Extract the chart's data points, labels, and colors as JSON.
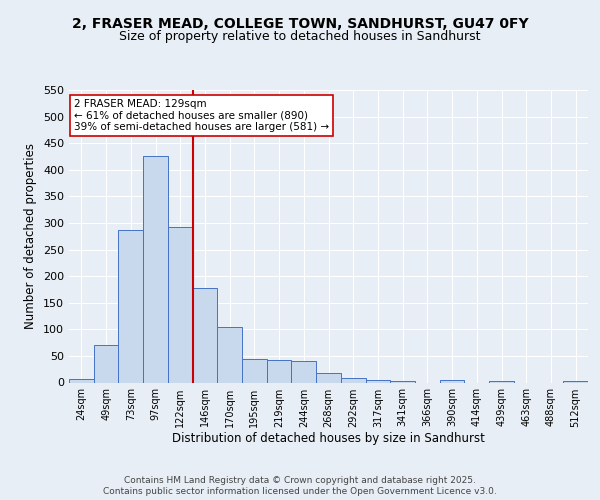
{
  "title_line1": "2, FRASER MEAD, COLLEGE TOWN, SANDHURST, GU47 0FY",
  "title_line2": "Size of property relative to detached houses in Sandhurst",
  "xlabel": "Distribution of detached houses by size in Sandhurst",
  "ylabel": "Number of detached properties",
  "bar_labels": [
    "24sqm",
    "49sqm",
    "73sqm",
    "97sqm",
    "122sqm",
    "146sqm",
    "170sqm",
    "195sqm",
    "219sqm",
    "244sqm",
    "268sqm",
    "292sqm",
    "317sqm",
    "341sqm",
    "366sqm",
    "390sqm",
    "414sqm",
    "439sqm",
    "463sqm",
    "488sqm",
    "512sqm"
  ],
  "bar_values": [
    7,
    70,
    287,
    425,
    293,
    177,
    104,
    45,
    42,
    40,
    17,
    9,
    5,
    2,
    0,
    4,
    0,
    2,
    0,
    0,
    3
  ],
  "bar_color": "#c9d9ed",
  "bar_edge_color": "#4472c4",
  "property_line_x": 4.5,
  "red_line_color": "#cc0000",
  "annotation_text": "2 FRASER MEAD: 129sqm\n← 61% of detached houses are smaller (890)\n39% of semi-detached houses are larger (581) →",
  "annotation_box_color": "#ffffff",
  "annotation_box_edge": "#cc0000",
  "ylim": [
    0,
    550
  ],
  "yticks": [
    0,
    50,
    100,
    150,
    200,
    250,
    300,
    350,
    400,
    450,
    500,
    550
  ],
  "footer_line1": "Contains HM Land Registry data © Crown copyright and database right 2025.",
  "footer_line2": "Contains public sector information licensed under the Open Government Licence v3.0.",
  "background_color": "#e8eef5",
  "plot_background": "#e8eef5",
  "grid_color": "#ffffff",
  "title_fontsize": 10,
  "subtitle_fontsize": 9
}
